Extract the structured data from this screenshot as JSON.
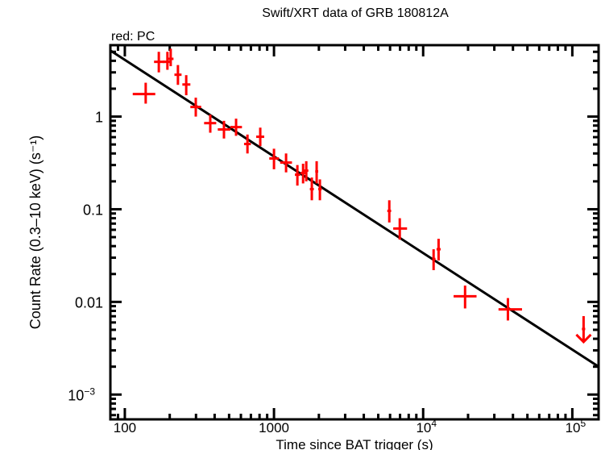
{
  "chart_data": {
    "type": "scatter",
    "title": "Swift/XRT data of GRB 180812A",
    "subtitle": "red: PC",
    "xlabel": "Time since BAT trigger (s)",
    "ylabel": "Count Rate (0.3–10 keV) (s⁻¹)",
    "xscale": "log",
    "yscale": "log",
    "xlim": [
      80,
      150000
    ],
    "ylim": [
      0.00054,
      5.9
    ],
    "grid": false,
    "xticks": [
      {
        "value": 100,
        "label": "100"
      },
      {
        "value": 1000,
        "label": "1000"
      },
      {
        "value": 10000,
        "label": "10",
        "exp": "4"
      },
      {
        "value": 100000,
        "label": "10",
        "exp": "5"
      }
    ],
    "yticks": [
      {
        "value": 0.001,
        "label": "10",
        "exp": "−3"
      },
      {
        "value": 0.01,
        "label": "0.01"
      },
      {
        "value": 0.1,
        "label": "0.1"
      },
      {
        "value": 1,
        "label": "1"
      }
    ],
    "colors": {
      "data": "#ff0000",
      "model": "#000000",
      "axes": "#000000"
    },
    "series": [
      {
        "mode": "PC",
        "points": [
          {
            "x": 138,
            "xlo": 113,
            "xhi": 160,
            "y": 1.75,
            "ylo": 1.38,
            "yhi": 2.32
          },
          {
            "x": 169,
            "xlo": 157,
            "xhi": 185,
            "y": 3.9,
            "ylo": 3.0,
            "yhi": 5.0
          },
          {
            "x": 193,
            "xlo": 180,
            "xhi": 205,
            "y": 3.9,
            "ylo": 3.2,
            "yhi": 5.0
          },
          {
            "x": 203,
            "xlo": 196,
            "xhi": 212,
            "y": 4.2,
            "ylo": 3.5,
            "yhi": 5.4
          },
          {
            "x": 227,
            "xlo": 215,
            "xhi": 240,
            "y": 2.83,
            "ylo": 2.2,
            "yhi": 3.6
          },
          {
            "x": 258,
            "xlo": 243,
            "xhi": 275,
            "y": 2.22,
            "ylo": 1.7,
            "yhi": 2.8
          },
          {
            "x": 299,
            "xlo": 275,
            "xhi": 325,
            "y": 1.27,
            "ylo": 1.0,
            "yhi": 1.6
          },
          {
            "x": 374,
            "xlo": 340,
            "xhi": 410,
            "y": 0.85,
            "ylo": 0.67,
            "yhi": 1.05
          },
          {
            "x": 462,
            "xlo": 420,
            "xhi": 510,
            "y": 0.726,
            "ylo": 0.58,
            "yhi": 0.9
          },
          {
            "x": 557,
            "xlo": 510,
            "xhi": 610,
            "y": 0.77,
            "ylo": 0.62,
            "yhi": 0.95
          },
          {
            "x": 664,
            "xlo": 630,
            "xhi": 700,
            "y": 0.506,
            "ylo": 0.4,
            "yhi": 0.64
          },
          {
            "x": 809,
            "xlo": 760,
            "xhi": 860,
            "y": 0.606,
            "ylo": 0.48,
            "yhi": 0.76
          },
          {
            "x": 1000,
            "xlo": 930,
            "xhi": 1080,
            "y": 0.353,
            "ylo": 0.27,
            "yhi": 0.45
          },
          {
            "x": 1205,
            "xlo": 1100,
            "xhi": 1320,
            "y": 0.319,
            "ylo": 0.25,
            "yhi": 0.4
          },
          {
            "x": 1435,
            "xlo": 1380,
            "xhi": 1500,
            "y": 0.236,
            "ylo": 0.18,
            "yhi": 0.3
          },
          {
            "x": 1567,
            "xlo": 1510,
            "xhi": 1620,
            "y": 0.246,
            "ylo": 0.19,
            "yhi": 0.31
          },
          {
            "x": 1646,
            "xlo": 1590,
            "xhi": 1700,
            "y": 0.261,
            "ylo": 0.2,
            "yhi": 0.33
          },
          {
            "x": 1793,
            "xlo": 1740,
            "xhi": 1850,
            "y": 0.165,
            "ylo": 0.125,
            "yhi": 0.22
          },
          {
            "x": 1932,
            "xlo": 1890,
            "xhi": 1980,
            "y": 0.256,
            "ylo": 0.19,
            "yhi": 0.33
          },
          {
            "x": 2031,
            "xlo": 1980,
            "xhi": 2090,
            "y": 0.165,
            "ylo": 0.125,
            "yhi": 0.21
          },
          {
            "x": 5930,
            "xlo": 5750,
            "xhi": 6100,
            "y": 0.096,
            "ylo": 0.072,
            "yhi": 0.125
          },
          {
            "x": 6970,
            "xlo": 6300,
            "xhi": 7800,
            "y": 0.062,
            "ylo": 0.047,
            "yhi": 0.08
          },
          {
            "x": 11750,
            "xlo": 11500,
            "xhi": 12100,
            "y": 0.029,
            "ylo": 0.022,
            "yhi": 0.037
          },
          {
            "x": 12690,
            "xlo": 12300,
            "xhi": 13100,
            "y": 0.037,
            "ylo": 0.028,
            "yhi": 0.048
          },
          {
            "x": 19100,
            "xlo": 16000,
            "xhi": 22800,
            "y": 0.0115,
            "ylo": 0.0085,
            "yhi": 0.015
          },
          {
            "x": 37000,
            "xlo": 32000,
            "xhi": 46000,
            "y": 0.0083,
            "ylo": 0.0063,
            "yhi": 0.011
          }
        ],
        "upper_limits": [
          {
            "x": 119000,
            "xlo": 116000,
            "xhi": 122000,
            "y": 0.0051
          }
        ]
      }
    ],
    "model": {
      "type": "power-law",
      "points": [
        {
          "x": 80,
          "y": 5.17
        },
        {
          "x": 150000,
          "y": 0.002
        }
      ]
    }
  }
}
